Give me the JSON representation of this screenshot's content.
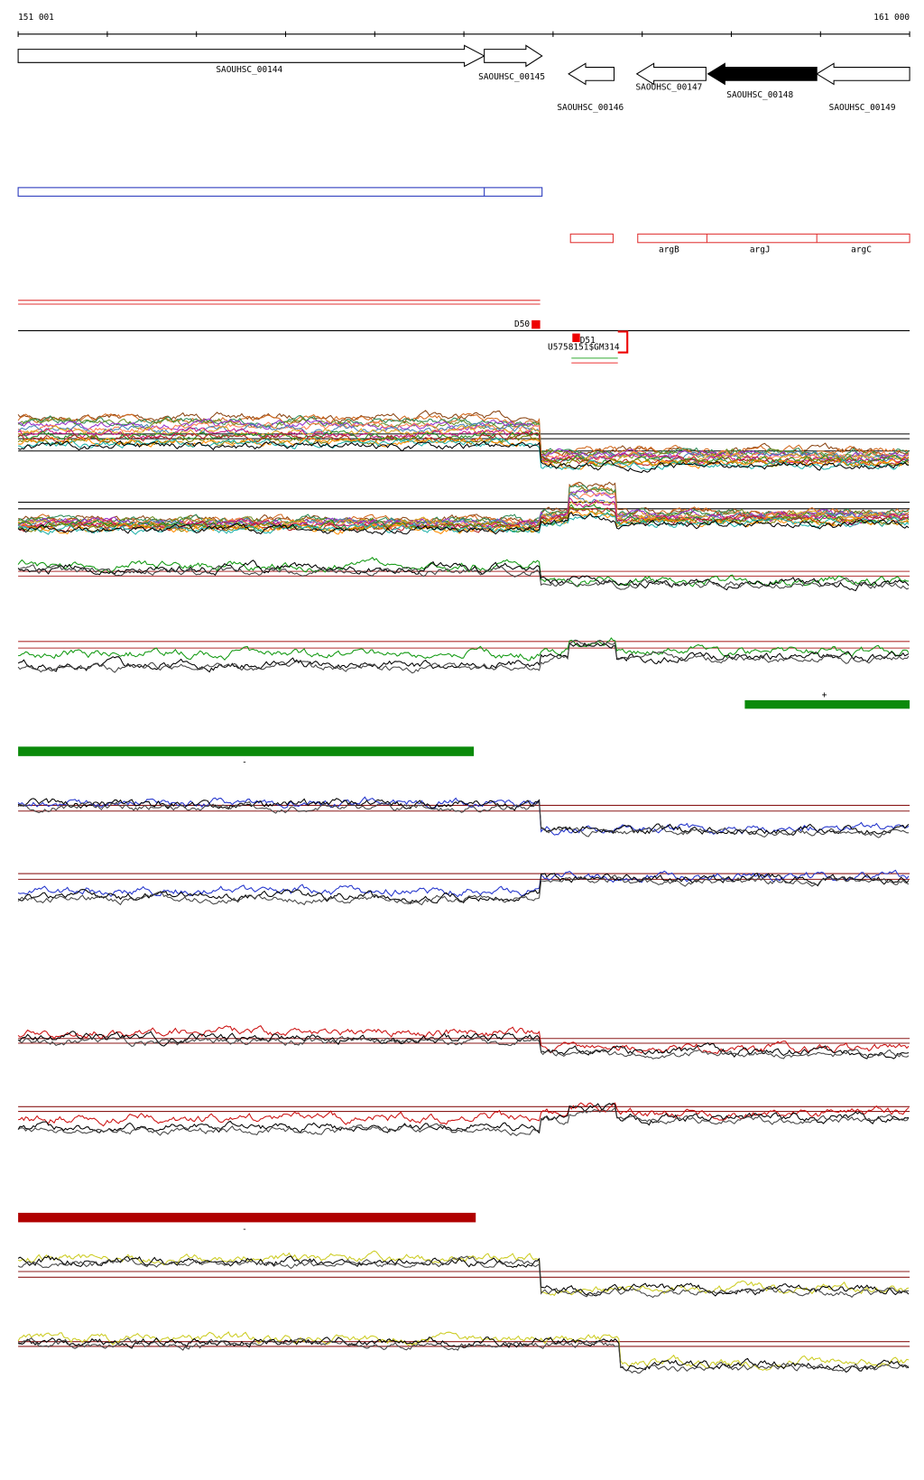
{
  "ruler": {
    "start": "151 001",
    "end": "161 000"
  },
  "genes": [
    {
      "label": "SAOUHSC_00144"
    },
    {
      "label": "SAOUHSC_00145"
    },
    {
      "label": "SAOUHSC_00146"
    },
    {
      "label": "SAOUHSC_00147"
    },
    {
      "label": "SAOUHSC_00148"
    },
    {
      "label": "SAOUHSC_00149"
    }
  ],
  "operon_genes": [
    {
      "label": "argB"
    },
    {
      "label": "argJ"
    },
    {
      "label": "argC"
    }
  ],
  "features": [
    {
      "label": "D50"
    },
    {
      "label": "D51"
    },
    {
      "label": "U5758151$GM314"
    }
  ],
  "strands": [
    {
      "label": "+"
    },
    {
      "label": "-"
    },
    {
      "label": "-"
    }
  ]
}
